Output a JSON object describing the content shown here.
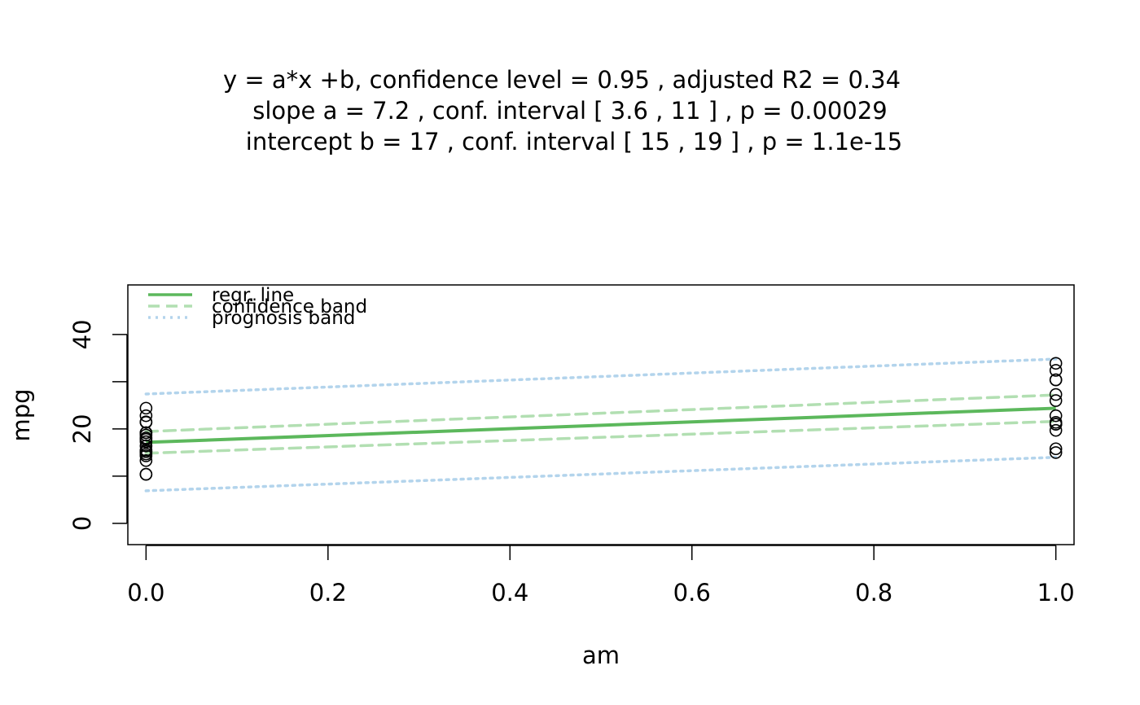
{
  "chart_data": {
    "type": "scatter",
    "title": [
      "y = a*x +b, confidence level =  0.95 , adjusted R2 =  0.34",
      "slope a =  7.2 , conf. interval [ 3.6 , 11 ] , p =  0.00029",
      "intercept b =  17 , conf. interval [ 15 , 19 ] , p =  1.1e-15"
    ],
    "xlabel": "am",
    "ylabel": "mpg",
    "xlim": [
      -0.02,
      1.02
    ],
    "ylim": [
      -4.5,
      50.5
    ],
    "x_ticks": [
      0.0,
      0.2,
      0.4,
      0.6,
      0.8,
      1.0
    ],
    "x_tick_labels": [
      "0.0",
      "0.2",
      "0.4",
      "0.6",
      "0.8",
      "1.0"
    ],
    "y_ticks": [
      0,
      10,
      20,
      30,
      40
    ],
    "y_tick_labels": [
      "0",
      "",
      "20",
      "",
      "40"
    ],
    "grid": false,
    "legend_position": "top-left",
    "legend": [
      {
        "label": "regr. line",
        "color": "#5cb85c",
        "style": "solid"
      },
      {
        "label": "confidence band",
        "color": "#b2dfb2",
        "style": "dashed"
      },
      {
        "label": "prognosis band",
        "color": "#b3d4ec",
        "style": "dotted"
      }
    ],
    "points": {
      "color": "#000000",
      "x": [
        0,
        0,
        0,
        0,
        0,
        0,
        0,
        0,
        0,
        0,
        0,
        0,
        0,
        0,
        0,
        0,
        0,
        0,
        0,
        1,
        1,
        1,
        1,
        1,
        1,
        1,
        1,
        1,
        1,
        1,
        1,
        1
      ],
      "y": [
        21.4,
        18.7,
        18.1,
        14.3,
        24.4,
        22.8,
        19.2,
        17.8,
        16.4,
        17.3,
        15.2,
        10.4,
        10.4,
        14.7,
        21.5,
        15.5,
        15.2,
        13.3,
        19.2,
        21.0,
        21.0,
        22.8,
        32.4,
        30.4,
        33.9,
        27.3,
        26.0,
        30.4,
        15.8,
        19.7,
        15.0,
        21.4
      ]
    },
    "regression_line": {
      "x": [
        0,
        1
      ],
      "y": [
        17.15,
        24.39
      ]
    },
    "confidence_band": {
      "lower": [
        14.85,
        21.6
      ],
      "upper": [
        19.45,
        27.2
      ]
    },
    "prognosis_band": {
      "lower": [
        6.9,
        14.0
      ],
      "upper": [
        27.4,
        34.8
      ]
    }
  }
}
